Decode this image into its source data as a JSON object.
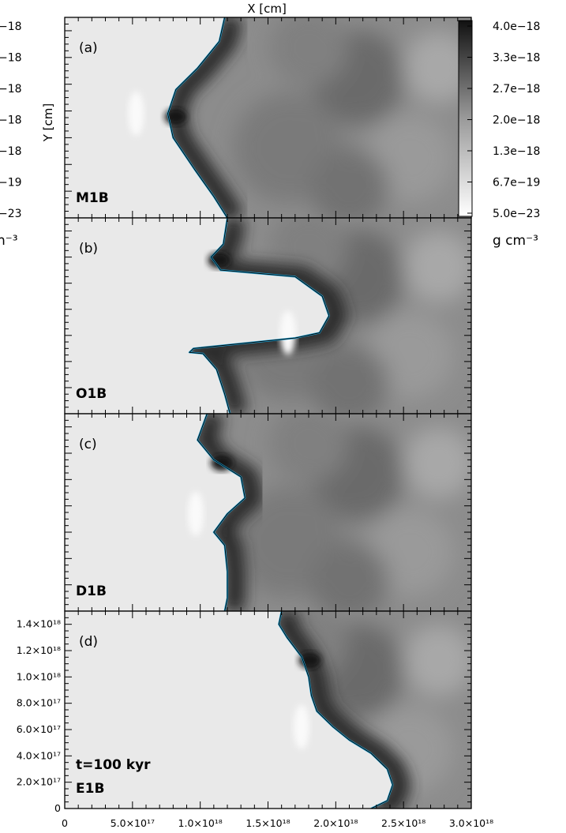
{
  "figure": {
    "x_axis_title": "X [cm]",
    "y_axis_title": "Y [cm]"
  },
  "colorbar": {
    "tick_labels": [
      "4.0e−18",
      "3.3e−18",
      "2.7e−18",
      "2.0e−18",
      "1.3e−18",
      "6.7e−19",
      "5.0e−23"
    ],
    "unit": "g cm⁻³",
    "cut_left_labels": [
      "−18",
      "−18",
      "−18",
      "−18",
      "−18",
      "−19",
      "−23"
    ],
    "cut_left_unit": "n⁻³"
  },
  "colors": {
    "contour_cyan": "#1fa3d6",
    "contour_black": "#000000",
    "ambient_light": "#e9e9e9",
    "dense_dark": "#141414"
  },
  "chart_data": {
    "type": "heatmap",
    "title": "",
    "xlabel": "X [cm]",
    "ylabel": "Y [cm]",
    "xlim": [
      0,
      3e+18
    ],
    "ylim": [
      0,
      1.5e+18
    ],
    "x_tick_labels": [
      "0",
      "5.0×10¹⁷",
      "1.0×10¹⁸",
      "1.5×10¹⁸",
      "2.0×10¹⁸",
      "2.5×10¹⁸",
      "3.0×10¹⁸"
    ],
    "y_tick_labels": [
      "0",
      "2.0×10¹⁷",
      "4.0×10¹⁷",
      "6.0×10¹⁷",
      "8.0×10¹⁷",
      "1.0×10¹⁸",
      "1.2×10¹⁸",
      "1.4×10¹⁸"
    ],
    "colorbar_range_g_cm3": [
      5e-23,
      4e-18
    ],
    "panels": [
      {
        "letter": "(a)",
        "model": "M1B",
        "time": "",
        "front": [
          [
            1.18e+18,
            1.5e+18
          ],
          [
            1.14e+18,
            1.32e+18
          ],
          [
            9.8e+17,
            1.12e+18
          ],
          [
            8.2e+17,
            9.6e+17
          ],
          [
            7.6e+17,
            7.8e+17
          ],
          [
            8e+17,
            6e+17
          ],
          [
            9.6e+17,
            3.6e+17
          ],
          [
            1.1e+18,
            1.6e+17
          ],
          [
            1.2e+18,
            0
          ]
        ]
      },
      {
        "letter": "(b)",
        "model": "O1B",
        "time": "",
        "front": [
          [
            1.2e+18,
            1.5e+18
          ],
          [
            1.17e+18,
            1.3e+18
          ],
          [
            1.08e+18,
            1.2e+18
          ],
          [
            1.15e+18,
            1.1e+18
          ],
          [
            1.7e+18,
            1.05e+18
          ],
          [
            1.9e+18,
            9e+17
          ],
          [
            1.95e+18,
            7.5e+17
          ],
          [
            1.88e+18,
            6.2e+17
          ],
          [
            1.7e+18,
            5.8e+17
          ],
          [
            9.5e+17,
            5e+17
          ],
          [
            9.2e+17,
            4.7e+17
          ],
          [
            1.02e+18,
            4.6e+17
          ],
          [
            1.12e+18,
            3.4e+17
          ],
          [
            1.18e+18,
            1.5e+17
          ],
          [
            1.22e+18,
            0
          ]
        ]
      },
      {
        "letter": "(c)",
        "model": "D1B",
        "time": "",
        "front": [
          [
            1.05e+18,
            1.5e+18
          ],
          [
            9.8e+17,
            1.3e+18
          ],
          [
            1.1e+18,
            1.15e+18
          ],
          [
            1.3e+18,
            1.02e+18
          ],
          [
            1.33e+18,
            8.6e+17
          ],
          [
            1.2e+18,
            7.4e+17
          ],
          [
            1.1e+18,
            6e+17
          ],
          [
            1.18e+18,
            5e+17
          ],
          [
            1.2e+18,
            3e+17
          ],
          [
            1.2e+18,
            1e+17
          ],
          [
            1.18e+18,
            0
          ]
        ]
      },
      {
        "letter": "(d)",
        "model": "E1B",
        "time": "t=100 kyr",
        "front": [
          [
            1.6e+18,
            1.5e+18
          ],
          [
            1.58e+18,
            1.4e+18
          ],
          [
            1.64e+18,
            1.3e+18
          ],
          [
            1.75e+18,
            1.15e+18
          ],
          [
            1.8e+18,
            1e+18
          ],
          [
            1.82e+18,
            8.6e+17
          ],
          [
            1.86e+18,
            7.4e+17
          ],
          [
            1.98e+18,
            6.2e+17
          ],
          [
            2.1e+18,
            5.2e+17
          ],
          [
            2.26e+18,
            4.2e+17
          ],
          [
            2.38e+18,
            3e+17
          ],
          [
            2.42e+18,
            1.8e+17
          ],
          [
            2.38e+18,
            6e+16
          ],
          [
            2.26e+18,
            0
          ]
        ]
      }
    ]
  }
}
